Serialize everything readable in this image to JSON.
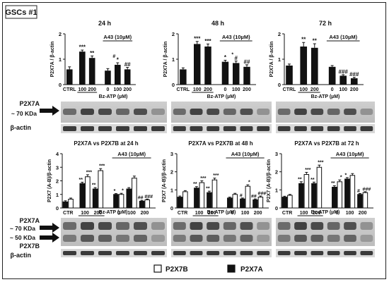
{
  "figure_label": "GSCs #1",
  "treatment_label": "Bz-ATP (µM)",
  "inhibitor_label": "A43 (10µM)",
  "blot_labels": {
    "top_band": "P2X7A",
    "top_kda": "~ 70 KDa",
    "loading": "β-actin",
    "bottom_band_a": "P2X7A",
    "bottom_band_b": "P2X7B",
    "bottom_kda_a": "~ 70 KDa",
    "bottom_kda_b": "~ 50 KDa"
  },
  "legend": {
    "p2x7b": "P2X7B",
    "p2x7a": "P2X7A"
  },
  "chart_data": [
    {
      "type": "bar",
      "title": "24 h",
      "ylabel": "P2X7A / β-actin",
      "ylim": [
        0,
        2
      ],
      "yticks": [
        "0",
        "1",
        "2"
      ],
      "categories": [
        "CTRL",
        "100",
        "200",
        "0",
        "100",
        "200"
      ],
      "values": [
        0.6,
        1.3,
        1.05,
        0.55,
        0.78,
        0.6
      ],
      "errors": [
        0.1,
        0.06,
        0.08,
        0.08,
        0.08,
        0.08
      ],
      "annotations": [
        "",
        "***",
        "**",
        "",
        "*",
        "##"
      ],
      "annotations2": [
        "",
        "",
        "",
        "",
        "#",
        ""
      ]
    },
    {
      "type": "bar",
      "title": "48 h",
      "ylabel": "P2X7A / β-actin",
      "ylim": [
        0,
        2
      ],
      "yticks": [
        "0",
        "1",
        "2"
      ],
      "categories": [
        "CTRL",
        "100",
        "200",
        "0",
        "100",
        "200"
      ],
      "values": [
        0.6,
        1.6,
        1.5,
        0.9,
        0.85,
        0.7
      ],
      "errors": [
        0.06,
        0.1,
        0.1,
        0.06,
        0.08,
        0.08
      ],
      "annotations": [
        "",
        "***",
        "***",
        "*",
        "#",
        "##"
      ],
      "annotations2": [
        "",
        "",
        "",
        "",
        "*",
        ""
      ]
    },
    {
      "type": "bar",
      "title": "72 h",
      "ylabel": "P2X7A / β-actin",
      "ylim": [
        0,
        2
      ],
      "yticks": [
        "0",
        "1",
        "2"
      ],
      "categories": [
        "CTRL",
        "100",
        "200",
        "0",
        "100",
        "200"
      ],
      "values": [
        0.75,
        1.5,
        1.45,
        0.7,
        0.35,
        0.25
      ],
      "errors": [
        0.06,
        0.16,
        0.16,
        0.05,
        0.04,
        0.04
      ],
      "annotations": [
        "",
        "**",
        "**",
        "",
        "###",
        "###"
      ],
      "annotations2": [
        "",
        "",
        "",
        "",
        "",
        ""
      ]
    },
    {
      "type": "bar",
      "title": "P2X7A vs P2X7B at 24 h",
      "ylabel": "P2X7 (A-B)/β-actin",
      "ylim": [
        0,
        4
      ],
      "yticks": [
        "0",
        "1",
        "2",
        "3",
        "4"
      ],
      "categories": [
        "CTR",
        "100",
        "200",
        "0",
        "100",
        "200"
      ],
      "series": [
        {
          "name": "P2X7A",
          "values": [
            0.45,
            1.8,
            1.4,
            1.0,
            1.4,
            0.5
          ],
          "errors": [
            0.08,
            0.1,
            0.1,
            0.06,
            0.1,
            0.06
          ]
        },
        {
          "name": "P2X7B",
          "values": [
            0.65,
            2.3,
            2.75,
            1.0,
            2.2,
            0.6
          ],
          "errors": [
            0.08,
            0.15,
            0.15,
            0.08,
            0.15,
            0.06
          ]
        }
      ],
      "annotations": [
        [
          "",
          "**",
          "**",
          "*",
          "",
          "##"
        ],
        [
          "",
          "***",
          "***",
          "*",
          "",
          "###"
        ]
      ]
    },
    {
      "type": "bar",
      "title": "P2X7A vs P2X7B at 48 h",
      "ylabel": "P2X7 (A-B)/β-actin",
      "ylim": [
        0,
        3
      ],
      "yticks": [
        "0",
        "1",
        "2",
        "3"
      ],
      "categories": [
        "CTR",
        "100",
        "200",
        "0",
        "100",
        "200"
      ],
      "series": [
        {
          "name": "P2X7A",
          "values": [
            0.6,
            1.1,
            0.85,
            0.55,
            0.5,
            0.45
          ],
          "errors": [
            0.06,
            0.08,
            0.08,
            0.05,
            0.05,
            0.05
          ]
        },
        {
          "name": "P2X7B",
          "values": [
            0.9,
            1.4,
            1.55,
            0.75,
            1.2,
            0.6
          ],
          "errors": [
            0.06,
            0.1,
            0.1,
            0.06,
            0.08,
            0.06
          ]
        }
      ],
      "annotations": [
        [
          "",
          "**",
          "**",
          "",
          "#",
          "##"
        ],
        [
          "",
          "***",
          "***",
          "",
          "*",
          "###"
        ]
      ]
    },
    {
      "type": "bar",
      "title": "P2X7A vs P2X7B at 72 h",
      "ylabel": "P2X7 (A-B)/β-actin",
      "ylim": [
        0,
        3
      ],
      "yticks": [
        "0",
        "1",
        "2",
        "3"
      ],
      "categories": [
        "CTR",
        "100",
        "200",
        "0",
        "100",
        "200"
      ],
      "series": [
        {
          "name": "P2X7A",
          "values": [
            0.6,
            1.35,
            1.35,
            1.15,
            1.6,
            0.75
          ],
          "errors": [
            0.05,
            0.1,
            0.08,
            0.08,
            0.08,
            0.05
          ]
        },
        {
          "name": "P2X7B",
          "values": [
            0.7,
            1.85,
            2.25,
            1.45,
            1.8,
            0.85
          ],
          "errors": [
            0.05,
            0.12,
            0.12,
            0.1,
            0.1,
            0.05
          ]
        }
      ],
      "annotations": [
        [
          "",
          "**",
          "**",
          "**",
          "*",
          "#"
        ],
        [
          "",
          "***",
          "***",
          "*",
          "",
          "###"
        ]
      ]
    }
  ]
}
